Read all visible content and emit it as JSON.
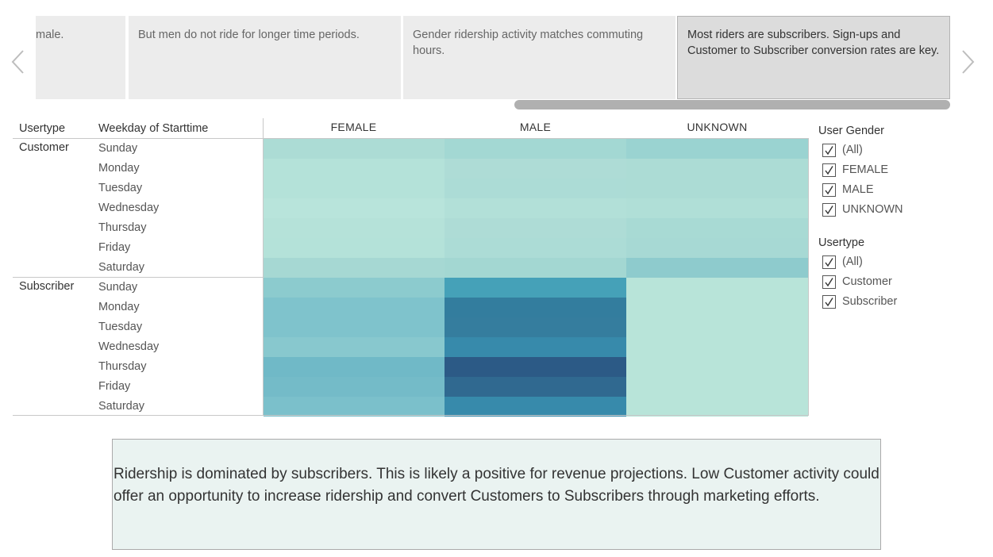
{
  "story": {
    "points": [
      {
        "text": "male.",
        "active": false
      },
      {
        "text": "But men do not ride for longer time periods.",
        "active": false
      },
      {
        "text": "Gender ridership activity matches commuting hours.",
        "active": false
      },
      {
        "text": "Most riders are subscribers. Sign-ups and Customer to Subscriber conversion rates are key.",
        "active": true
      }
    ],
    "icons": {
      "prev": "chevron-left-icon",
      "next": "chevron-right-icon"
    }
  },
  "table": {
    "headers": {
      "usertype": "Usertype",
      "weekday": "Weekday of Starttime"
    },
    "columns": [
      "FEMALE",
      "MALE",
      "UNKNOWN"
    ],
    "groups": [
      {
        "usertype": "Customer",
        "days": [
          "Sunday",
          "Monday",
          "Tuesday",
          "Wednesday",
          "Thursday",
          "Friday",
          "Saturday"
        ],
        "colors": [
          [
            "#acdcd5",
            "#a3d8d3",
            "#9ad3d1"
          ],
          [
            "#b4e2d9",
            "#aedcd6",
            "#acdcd5"
          ],
          [
            "#b4e2d9",
            "#acdcd6",
            "#acdcd5"
          ],
          [
            "#b8e4db",
            "#b2e0d8",
            "#b0dfd7"
          ],
          [
            "#b5e2d9",
            "#aedcd6",
            "#a8dad4"
          ],
          [
            "#b4e2d9",
            "#acdcd6",
            "#a7d9d4"
          ],
          [
            "#a6d8d3",
            "#a3d7d2",
            "#8ecbcd"
          ]
        ]
      },
      {
        "usertype": "Subscriber",
        "days": [
          "Sunday",
          "Monday",
          "Tuesday",
          "Wednesday",
          "Thursday",
          "Friday",
          "Saturday"
        ],
        "colors": [
          [
            "#8ccbce",
            "#45a1b8",
            "#b8e4d9"
          ],
          [
            "#7fc3cc",
            "#337d9e",
            "#b8e4d9"
          ],
          [
            "#7fc3cc",
            "#357d9e",
            "#b8e4d9"
          ],
          [
            "#88c8ce",
            "#378aab",
            "#b8e4d9"
          ],
          [
            "#70b9c7",
            "#2c5a86",
            "#b8e4d9"
          ],
          [
            "#74bbc8",
            "#306990",
            "#b8e4d9"
          ],
          [
            "#7bc0cb",
            "#378aab",
            "#b8e4d9"
          ]
        ]
      }
    ]
  },
  "filters": [
    {
      "title": "User Gender",
      "items": [
        "(All)",
        "FEMALE",
        "MALE",
        "UNKNOWN"
      ]
    },
    {
      "title": "Usertype",
      "items": [
        "(All)",
        "Customer",
        "Subscriber"
      ]
    }
  ],
  "annotation": "Ridership is dominated by subscribers. This is likely a positive for revenue projections. Low Customer activity could offer an opportunity to increase ridership and convert Customers to Subscribers through marketing efforts."
}
